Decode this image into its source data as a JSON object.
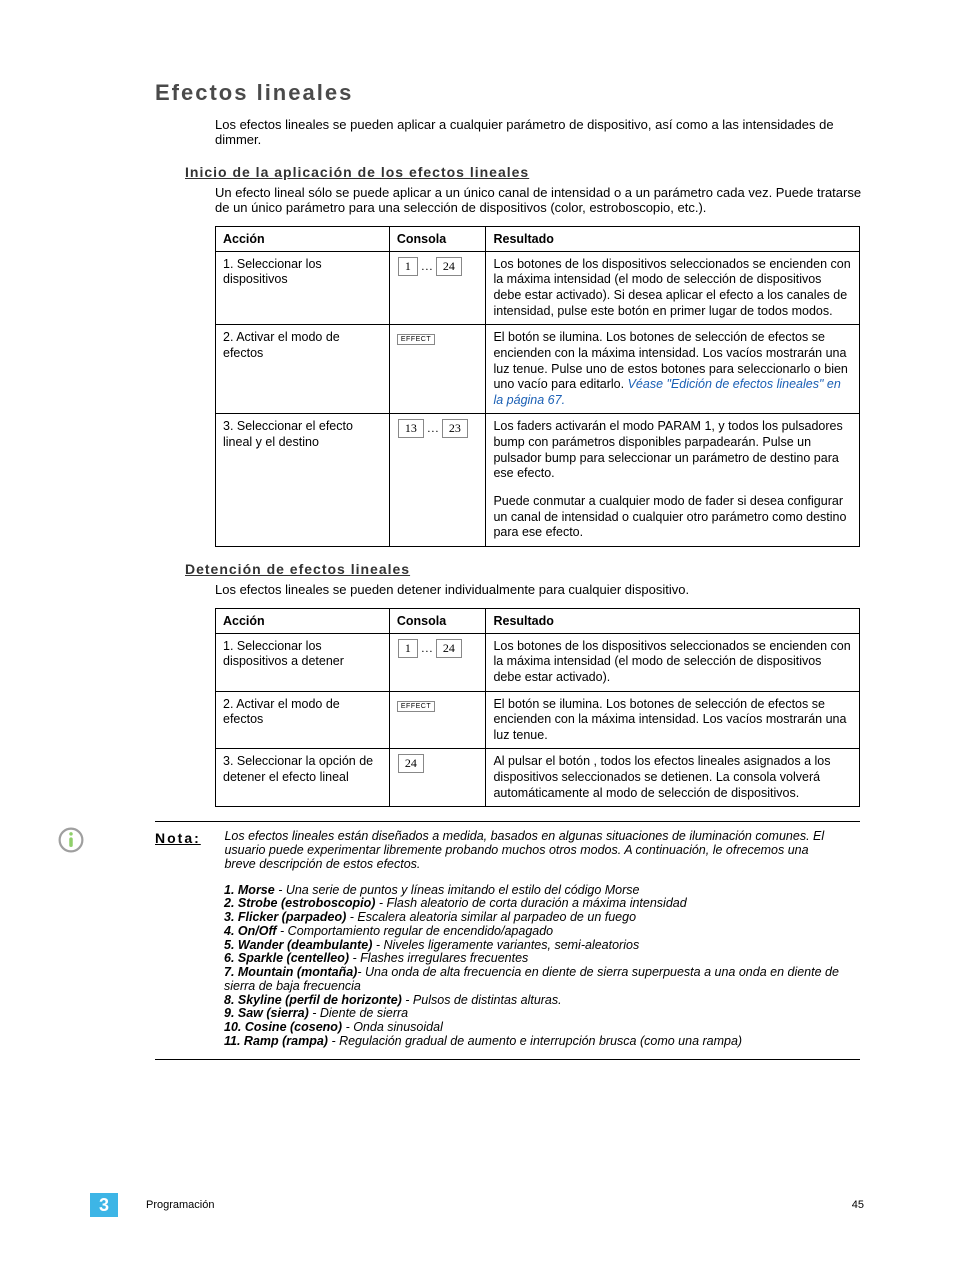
{
  "title": "Efectos lineales",
  "intro": "Los efectos lineales se pueden aplicar a cualquier parámetro de dispositivo, así como a las intensidades de dimmer.",
  "section1": {
    "heading": "Inicio de la aplicación de los efectos lineales",
    "intro": "Un efecto lineal sólo se puede aplicar a un único canal de intensidad o a un parámetro cada vez. Puede tratarse de un único parámetro para una selección de dispositivos (color, estroboscopio, etc.).",
    "headers": {
      "accion": "Acción",
      "consola": "Consola",
      "resultado": "Resultado"
    },
    "rows": [
      {
        "accion": "1. Seleccionar los dispositivos",
        "console": {
          "type": "range",
          "from": "1",
          "to": "24"
        },
        "resultado": "Los botones de los dispositivos seleccionados se encienden con la máxima intensidad (el modo de selección de dispositivos debe estar activado). Si desea aplicar el efecto a los canales de intensidad, pulse este botón en primer lugar de todos modos."
      },
      {
        "accion": "2. Activar el modo de efectos",
        "console": {
          "type": "label",
          "label": "EFFECT"
        },
        "resultado_pre": "El botón se ilumina. Los botones de selección de efectos se encienden con la máxima intensidad. Los vacíos mostrarán una luz tenue. Pulse uno de estos botones para seleccionarlo o bien uno vacío para editarlo. ",
        "resultado_link": "Véase \"Edición de efectos lineales\" en la página  67."
      },
      {
        "accion": "3. Seleccionar el efecto lineal y el destino",
        "console": {
          "type": "range",
          "from": "13",
          "to": "23"
        },
        "resultado_p1": "Los faders activarán el modo PARAM 1, y todos los pulsadores bump con parámetros disponibles parpadearán. Pulse un pulsador bump para seleccionar un parámetro de destino para ese efecto.",
        "resultado_p2": "Puede conmutar a cualquier modo de fader si desea configurar un canal de intensidad o cualquier otro parámetro como destino para ese efecto."
      }
    ]
  },
  "section2": {
    "heading": "Detención de efectos lineales",
    "intro": "Los efectos lineales se pueden detener individualmente para cualquier dispositivo.",
    "headers": {
      "accion": "Acción",
      "consola": "Consola",
      "resultado": "Resultado"
    },
    "rows": [
      {
        "accion": "1. Seleccionar los dispositivos a detener",
        "console": {
          "type": "range",
          "from": "1",
          "to": "24"
        },
        "resultado": "Los botones de los dispositivos seleccionados se encienden con la máxima intensidad (el modo de selección de dispositivos debe estar activado)."
      },
      {
        "accion": "2. Activar el modo de efectos",
        "console": {
          "type": "label",
          "label": "EFFECT"
        },
        "resultado": "El botón se ilumina. Los botones de selección de efectos se encienden con la máxima intensidad. Los vacíos mostrarán una luz tenue."
      },
      {
        "accion": "3. Seleccionar la opción de detener el efecto lineal",
        "console": {
          "type": "single",
          "label": "24"
        },
        "resultado": "Al pulsar el botón , todos los efectos lineales asignados a los dispositivos seleccionados se detienen. La consola volverá automáticamente al modo de selección de dispositivos."
      }
    ]
  },
  "note": {
    "label": "Nota:",
    "intro": "Los efectos lineales están diseñados a medida, basados en algunas situaciones de iluminación comunes. El usuario puede experimentar libremente probando muchos otros modos. A continuación, le ofrecemos una breve descripción de estos efectos.",
    "effects": [
      {
        "n": "1.",
        "name": "Morse",
        "desc": " - Una serie de puntos y líneas imitando el estilo del código Morse"
      },
      {
        "n": "2.",
        "name": "Strobe (estroboscopio)",
        "desc": " - Flash aleatorio de corta duración a máxima intensidad"
      },
      {
        "n": "3.",
        "name": "Flicker (parpadeo)",
        "desc": " - Escalera aleatoria similar al parpadeo de un fuego"
      },
      {
        "n": "4.",
        "name": "On/Off",
        "desc": " - Comportamiento regular de encendido/apagado"
      },
      {
        "n": "5.",
        "name": "Wander (deambulante)",
        "desc": " - Niveles ligeramente variantes, semi-aleatorios"
      },
      {
        "n": "6.",
        "name": "Sparkle (centelleo)",
        "desc": " - Flashes irregulares frecuentes"
      },
      {
        "n": "7.",
        "name": "Mountain (montaña)",
        "desc": "- Una onda de alta frecuencia en diente de sierra superpuesta a una onda en diente de sierra de baja frecuencia"
      },
      {
        "n": "8.",
        "name": "Skyline (perfil de horizonte)",
        "desc": " - Pulsos de distintas alturas."
      },
      {
        "n": "9.",
        "name": "Saw (sierra)",
        "desc": " - Diente de sierra"
      },
      {
        "n": "10.",
        "name": "Cosine (coseno)",
        "desc": " - Onda sinusoidal"
      },
      {
        "n": "11.",
        "name": "Ramp (rampa)",
        "desc": " - Regulación gradual de aumento e interrupción brusca (como una rampa)"
      }
    ]
  },
  "footer": {
    "chapter": "3",
    "section": "Programación",
    "page": "45"
  },
  "colors": {
    "link": "#1a5fb4",
    "badge_bg": "#3db5e6",
    "icon_ring": "#9f9f9f",
    "icon_fill": "#8fcf6a"
  }
}
